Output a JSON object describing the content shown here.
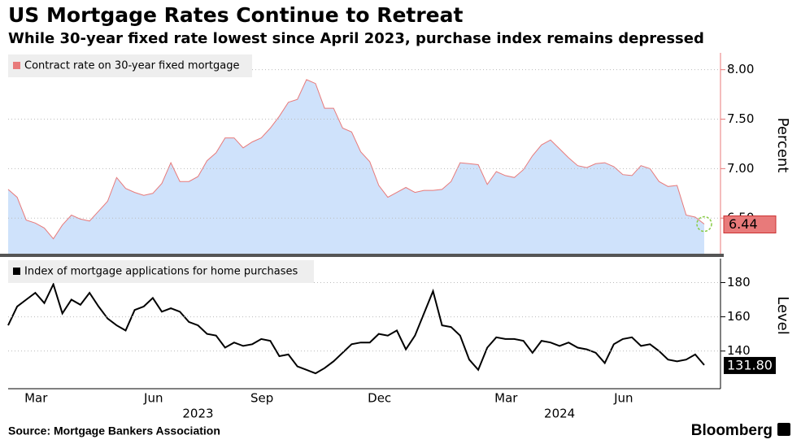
{
  "chart_data": [
    {
      "type": "area",
      "title": "US Mortgage Rates Continue to Retreat",
      "subtitle": "While 30-year fixed rate lowest since April 2023, purchase index remains depressed",
      "y_label": "Percent",
      "grid": true,
      "legend": "top-left",
      "ylim": [
        6.14,
        8.17
      ],
      "yticks": [
        {
          "value": 6.5,
          "label": "6.50"
        },
        {
          "value": 7,
          "label": "7.00"
        },
        {
          "value": 7.5,
          "label": "7.50"
        },
        {
          "value": 8,
          "label": "8.00"
        }
      ],
      "series": [
        {
          "name": "Contract rate on 30-year fixed mortgage",
          "color": "#e87a7a",
          "fill": "#cfe2fb",
          "values": [
            6.79,
            6.71,
            6.48,
            6.45,
            6.4,
            6.29,
            6.43,
            6.53,
            6.49,
            6.47,
            6.57,
            6.67,
            6.91,
            6.8,
            6.76,
            6.73,
            6.75,
            6.85,
            7.06,
            6.87,
            6.87,
            6.92,
            7.08,
            7.16,
            7.31,
            7.31,
            7.21,
            7.27,
            7.31,
            7.41,
            7.53,
            7.67,
            7.7,
            7.9,
            7.86,
            7.61,
            7.61,
            7.41,
            7.37,
            7.17,
            7.07,
            6.83,
            6.71,
            6.76,
            6.81,
            6.76,
            6.78,
            6.78,
            6.79,
            6.87,
            7.06,
            7.05,
            7.04,
            6.84,
            6.97,
            6.93,
            6.91,
            6.99,
            7.13,
            7.24,
            7.29,
            7.2,
            7.11,
            7.03,
            7.01,
            7.05,
            7.06,
            7.02,
            6.94,
            6.93,
            7.03,
            7.0,
            6.87,
            6.82,
            6.83,
            6.53,
            6.51,
            6.44
          ]
        }
      ]
    },
    {
      "type": "line",
      "y_label": "Level",
      "grid": true,
      "legend": "top-left",
      "categories": [
        null,
        null,
        "Mar",
        null,
        null,
        null,
        null,
        null,
        null,
        null,
        null,
        null,
        null,
        null,
        null,
        "Jun",
        null,
        null,
        null,
        null,
        null,
        null,
        null,
        null,
        null,
        null,
        null,
        "Sep",
        null,
        null,
        null,
        null,
        null,
        null,
        null,
        null,
        null,
        null,
        null,
        null,
        "Dec",
        null,
        null,
        null,
        null,
        null,
        null,
        null,
        null,
        null,
        null,
        null,
        null,
        null,
        "Mar",
        null,
        null,
        null,
        null,
        null,
        null,
        null,
        null,
        null,
        null,
        null,
        null,
        "Jun",
        null,
        null,
        null,
        null,
        null,
        null,
        null,
        null,
        null,
        null
      ],
      "category_groups": [
        null,
        null,
        null,
        null,
        null,
        null,
        null,
        null,
        null,
        null,
        null,
        null,
        null,
        null,
        null,
        null,
        null,
        null,
        null,
        null,
        null,
        "2023",
        null,
        null,
        null,
        null,
        null,
        null,
        null,
        null,
        null,
        null,
        null,
        null,
        null,
        null,
        null,
        null,
        null,
        null,
        null,
        null,
        null,
        null,
        null,
        null,
        null,
        null,
        null,
        null,
        null,
        null,
        null,
        null,
        null,
        null,
        null,
        null,
        null,
        null,
        null,
        "2024",
        null,
        null,
        null,
        null,
        null,
        null,
        null,
        null,
        null,
        null,
        null,
        null,
        null,
        null,
        null,
        null
      ],
      "ylim": [
        118,
        194
      ],
      "yticks": [
        140,
        160,
        180
      ],
      "series": [
        {
          "name": "Index of mortgage applications for home purchases",
          "color": "#000000",
          "values": [
            155,
            166,
            170,
            174,
            168,
            179,
            162,
            170,
            167,
            174,
            166,
            159,
            155,
            152,
            164,
            166,
            171,
            163,
            165,
            163,
            157,
            155,
            150,
            149,
            142,
            145,
            143,
            144,
            147,
            146,
            137,
            138,
            131,
            129,
            127,
            130,
            134,
            139,
            144,
            145,
            145,
            150,
            149,
            152,
            141,
            149,
            162,
            175,
            155,
            154,
            149,
            135,
            129,
            142,
            148,
            147,
            147,
            146,
            139,
            146,
            145,
            143,
            145,
            142,
            141,
            139,
            133,
            144,
            147,
            148,
            143,
            144,
            140,
            135,
            134,
            135,
            138,
            131.8
          ],
          "value_labels": [
            null,
            null,
            null,
            null,
            null,
            null,
            null,
            null,
            null,
            null,
            null,
            null,
            null,
            null,
            null,
            null,
            null,
            null,
            null,
            null,
            null,
            null,
            null,
            null,
            null,
            null,
            null,
            null,
            null,
            null,
            null,
            null,
            null,
            null,
            null,
            null,
            null,
            null,
            null,
            null,
            null,
            null,
            null,
            null,
            null,
            null,
            null,
            null,
            null,
            null,
            null,
            null,
            null,
            null,
            null,
            null,
            null,
            null,
            null,
            null,
            null,
            null,
            null,
            null,
            null,
            null,
            null,
            null,
            null,
            null,
            null,
            null,
            null,
            null,
            null,
            null,
            null,
            "131.80"
          ]
        }
      ]
    }
  ],
  "footer": {
    "source": "Source: Mortgage Bankers Association",
    "brand": "Bloomberg"
  }
}
